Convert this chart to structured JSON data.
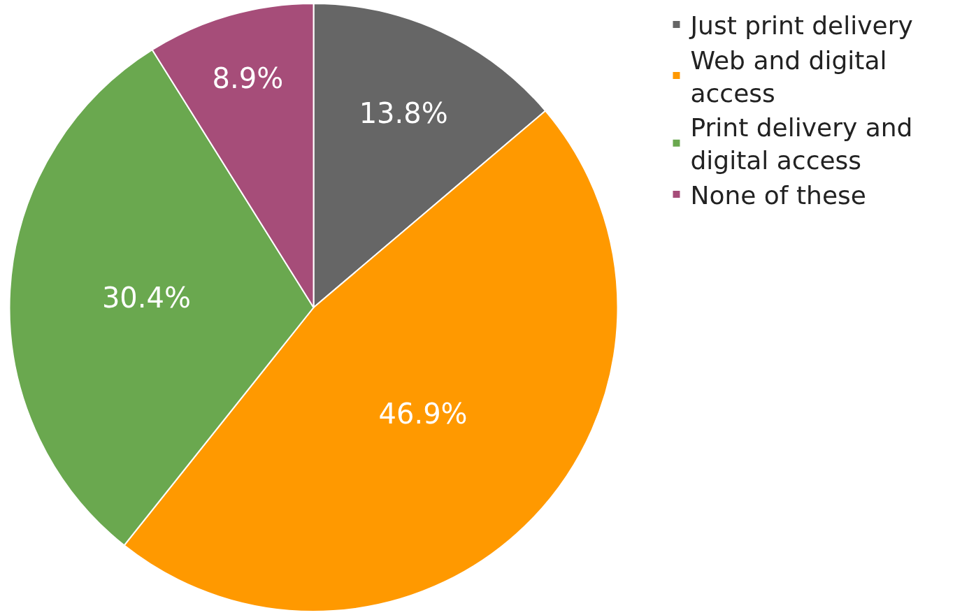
{
  "chart_data": {
    "type": "pie",
    "categories": [
      "Just print delivery",
      "Web and digital access",
      "Print delivery and digital access",
      "None of these"
    ],
    "values": [
      13.8,
      46.9,
      30.4,
      8.9
    ],
    "value_labels": [
      "13.8%",
      "46.9%",
      "30.4%",
      "8.9%"
    ],
    "colors": [
      "#666666",
      "#ff9900",
      "#6aa84f",
      "#a64d79"
    ],
    "legend": "right"
  }
}
